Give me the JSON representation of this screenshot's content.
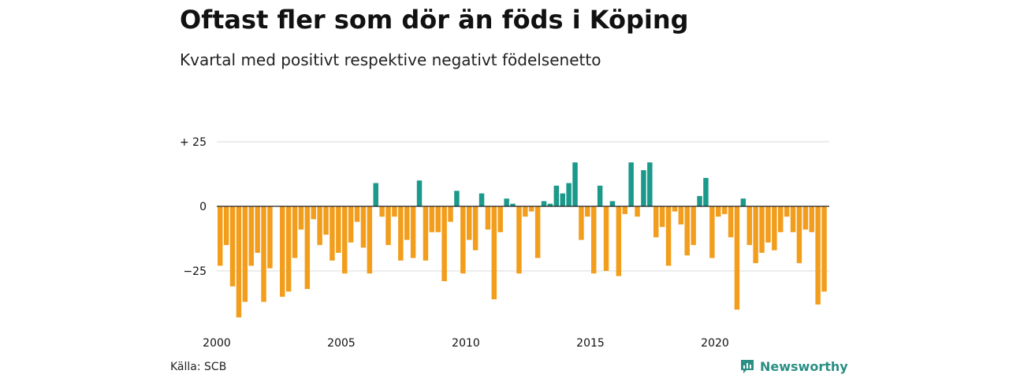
{
  "header": {
    "title": "Oftast fler som dör än föds i Köping",
    "subtitle": "Kvartal med positivt respektive negativt födelsenetto"
  },
  "footer": {
    "source": "Källa: SCB",
    "brand": "Newsworthy"
  },
  "colors": {
    "positive": "#1b998b",
    "negative": "#f29e1c",
    "grid": "#d9d9d9",
    "zero_line": "#222222",
    "brand": "#2a8f84"
  },
  "icons": {
    "brand_logo": "newsworthy-logo-icon"
  },
  "chart_data": {
    "type": "bar",
    "title": "Oftast fler som dör än föds i Köping",
    "subtitle": "Kvartal med positivt respektive negativt födelsenetto",
    "xlabel": "",
    "ylabel": "",
    "x_start": "2000 Q1",
    "x_end": "2024 Q2",
    "x_ticks": [
      "2000",
      "2005",
      "2010",
      "2015",
      "2020"
    ],
    "y_ticks": [
      25,
      0,
      -25
    ],
    "y_tick_labels": [
      "+ 25",
      "0",
      "−25"
    ],
    "ylim": [
      -45,
      27
    ],
    "grid": true,
    "values": [
      -23,
      -15,
      -31,
      -43,
      -37,
      -23,
      -18,
      -37,
      -24,
      0,
      -35,
      -33,
      -20,
      -9,
      -32,
      -5,
      -15,
      -11,
      -21,
      -18,
      -26,
      -14,
      -6,
      -16,
      -26,
      9,
      -4,
      -15,
      -4,
      -21,
      -13,
      -20,
      10,
      -21,
      -10,
      -10,
      -29,
      -6,
      6,
      -26,
      -13,
      -17,
      5,
      -9,
      -36,
      -10,
      3,
      1,
      -26,
      -4,
      -2,
      -20,
      2,
      1,
      8,
      5,
      9,
      17,
      -13,
      -4,
      -26,
      8,
      -25,
      2,
      -27,
      -3,
      17,
      -4,
      14,
      17,
      -12,
      -8,
      -23,
      -2,
      -7,
      -19,
      -15,
      4,
      11,
      -20,
      -4,
      -3,
      -12,
      -40,
      3,
      -15,
      -22,
      -18,
      -14,
      -17,
      -10,
      -4,
      -10,
      -22,
      -9,
      -10,
      -38,
      -33
    ]
  }
}
